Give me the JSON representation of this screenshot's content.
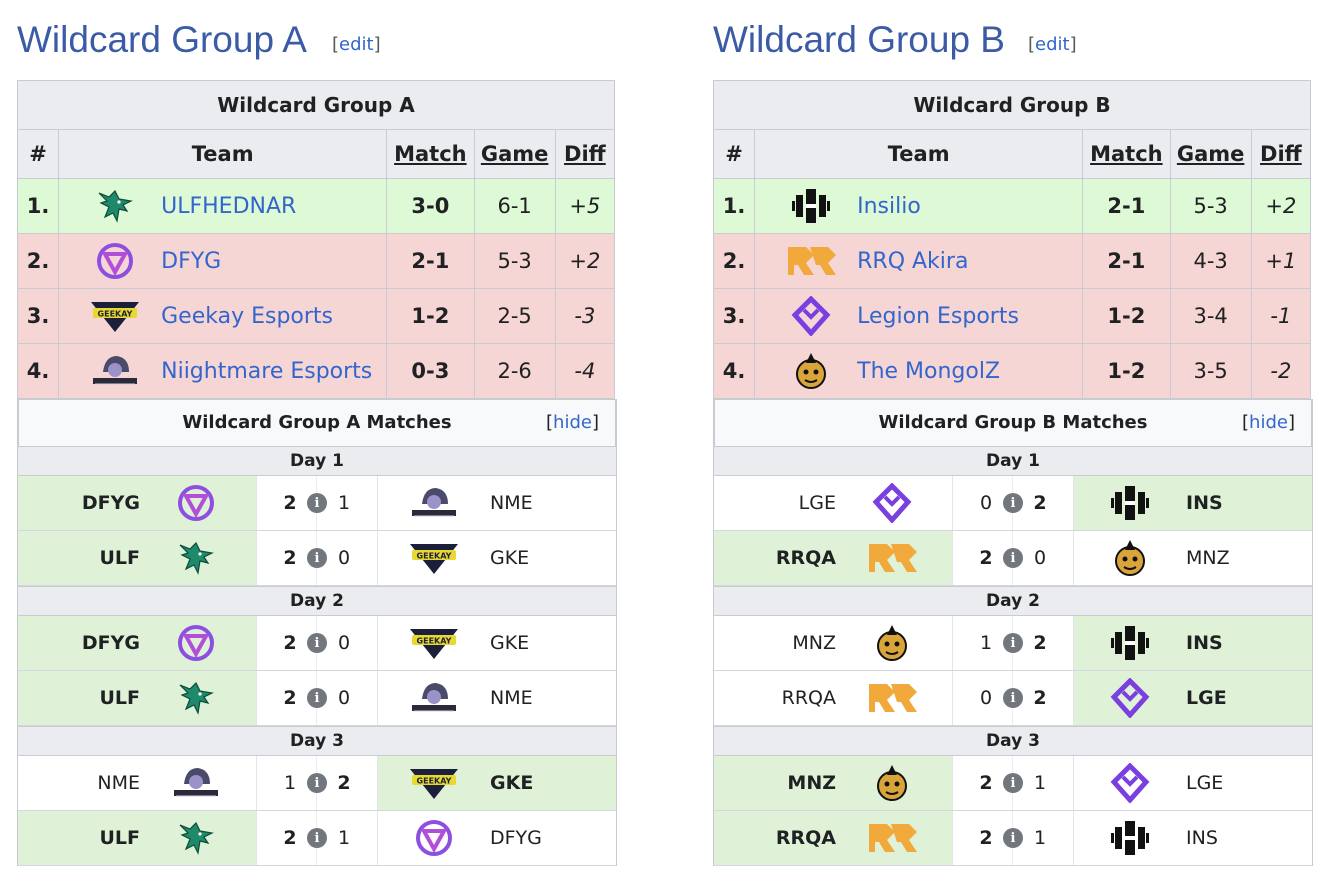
{
  "groups": [
    {
      "id": "A",
      "heading": "Wildcard Group A",
      "edit": "edit",
      "caption": "Wildcard Group A",
      "columns": [
        "#",
        "Team",
        "Match",
        "Game",
        "Diff"
      ],
      "standings": [
        {
          "rank": "1.",
          "team": "ULFHEDNAR",
          "logo": "wolf-logo",
          "match": "3-0",
          "game": "6-1",
          "diff": "+5",
          "status": "win"
        },
        {
          "rank": "2.",
          "team": "DFYG",
          "logo": "dfyg-logo",
          "match": "2-1",
          "game": "5-3",
          "diff": "+2",
          "status": "lose"
        },
        {
          "rank": "3.",
          "team": "Geekay Esports",
          "logo": "geekay-logo",
          "match": "1-2",
          "game": "2-5",
          "diff": "-3",
          "status": "lose"
        },
        {
          "rank": "4.",
          "team": "Niightmare Esports",
          "logo": "nightmare-logo",
          "match": "0-3",
          "game": "2-6",
          "diff": "-4",
          "status": "lose"
        }
      ],
      "matches_title": "Wildcard Group A Matches",
      "hide": "hide",
      "days": [
        {
          "label": "Day 1",
          "matches": [
            {
              "left": "DFYG",
              "left_logo": "dfyg-logo",
              "ls": "2",
              "rs": "1",
              "right": "NME",
              "right_logo": "nightmare-logo",
              "winner": "left"
            },
            {
              "left": "ULF",
              "left_logo": "wolf-logo",
              "ls": "2",
              "rs": "0",
              "right": "GKE",
              "right_logo": "geekay-logo",
              "winner": "left"
            }
          ]
        },
        {
          "label": "Day 2",
          "matches": [
            {
              "left": "DFYG",
              "left_logo": "dfyg-logo",
              "ls": "2",
              "rs": "0",
              "right": "GKE",
              "right_logo": "geekay-logo",
              "winner": "left"
            },
            {
              "left": "ULF",
              "left_logo": "wolf-logo",
              "ls": "2",
              "rs": "0",
              "right": "NME",
              "right_logo": "nightmare-logo",
              "winner": "left"
            }
          ]
        },
        {
          "label": "Day 3",
          "matches": [
            {
              "left": "NME",
              "left_logo": "nightmare-logo",
              "ls": "1",
              "rs": "2",
              "right": "GKE",
              "right_logo": "geekay-logo",
              "winner": "right"
            },
            {
              "left": "ULF",
              "left_logo": "wolf-logo",
              "ls": "2",
              "rs": "1",
              "right": "DFYG",
              "right_logo": "dfyg-logo",
              "winner": "left"
            }
          ]
        }
      ]
    },
    {
      "id": "B",
      "heading": "Wildcard Group B",
      "edit": "edit",
      "caption": "Wildcard Group B",
      "columns": [
        "#",
        "Team",
        "Match",
        "Game",
        "Diff"
      ],
      "standings": [
        {
          "rank": "1.",
          "team": "Insilio",
          "logo": "insilio-logo",
          "match": "2-1",
          "game": "5-3",
          "diff": "+2",
          "status": "win"
        },
        {
          "rank": "2.",
          "team": "RRQ Akira",
          "logo": "rrq-logo",
          "match": "2-1",
          "game": "4-3",
          "diff": "+1",
          "status": "lose"
        },
        {
          "rank": "3.",
          "team": "Legion Esports",
          "logo": "legion-logo",
          "match": "1-2",
          "game": "3-4",
          "diff": "-1",
          "status": "lose"
        },
        {
          "rank": "4.",
          "team": "The MongolZ",
          "logo": "mongolz-logo",
          "match": "1-2",
          "game": "3-5",
          "diff": "-2",
          "status": "lose"
        }
      ],
      "matches_title": "Wildcard Group B Matches",
      "hide": "hide",
      "days": [
        {
          "label": "Day 1",
          "matches": [
            {
              "left": "LGE",
              "left_logo": "legion-logo",
              "ls": "0",
              "rs": "2",
              "right": "INS",
              "right_logo": "insilio-logo",
              "winner": "right"
            },
            {
              "left": "RRQA",
              "left_logo": "rrq-logo",
              "ls": "2",
              "rs": "0",
              "right": "MNZ",
              "right_logo": "mongolz-logo",
              "winner": "left"
            }
          ]
        },
        {
          "label": "Day 2",
          "matches": [
            {
              "left": "MNZ",
              "left_logo": "mongolz-logo",
              "ls": "1",
              "rs": "2",
              "right": "INS",
              "right_logo": "insilio-logo",
              "winner": "right"
            },
            {
              "left": "RRQA",
              "left_logo": "rrq-logo",
              "ls": "0",
              "rs": "2",
              "right": "LGE",
              "right_logo": "legion-logo",
              "winner": "right"
            }
          ]
        },
        {
          "label": "Day 3",
          "matches": [
            {
              "left": "MNZ",
              "left_logo": "mongolz-logo",
              "ls": "2",
              "rs": "1",
              "right": "LGE",
              "right_logo": "legion-logo",
              "winner": "left"
            },
            {
              "left": "RRQA",
              "left_logo": "rrq-logo",
              "ls": "2",
              "rs": "1",
              "right": "INS",
              "right_logo": "insilio-logo",
              "winner": "left"
            }
          ]
        }
      ]
    }
  ],
  "info_glyph": "i",
  "colors": {
    "win_row": "#ddf9d5",
    "lose_row": "#f6d5d5",
    "link": "#3366cc",
    "heading": "#3b5ba5",
    "header_bg": "#eaecf0"
  }
}
